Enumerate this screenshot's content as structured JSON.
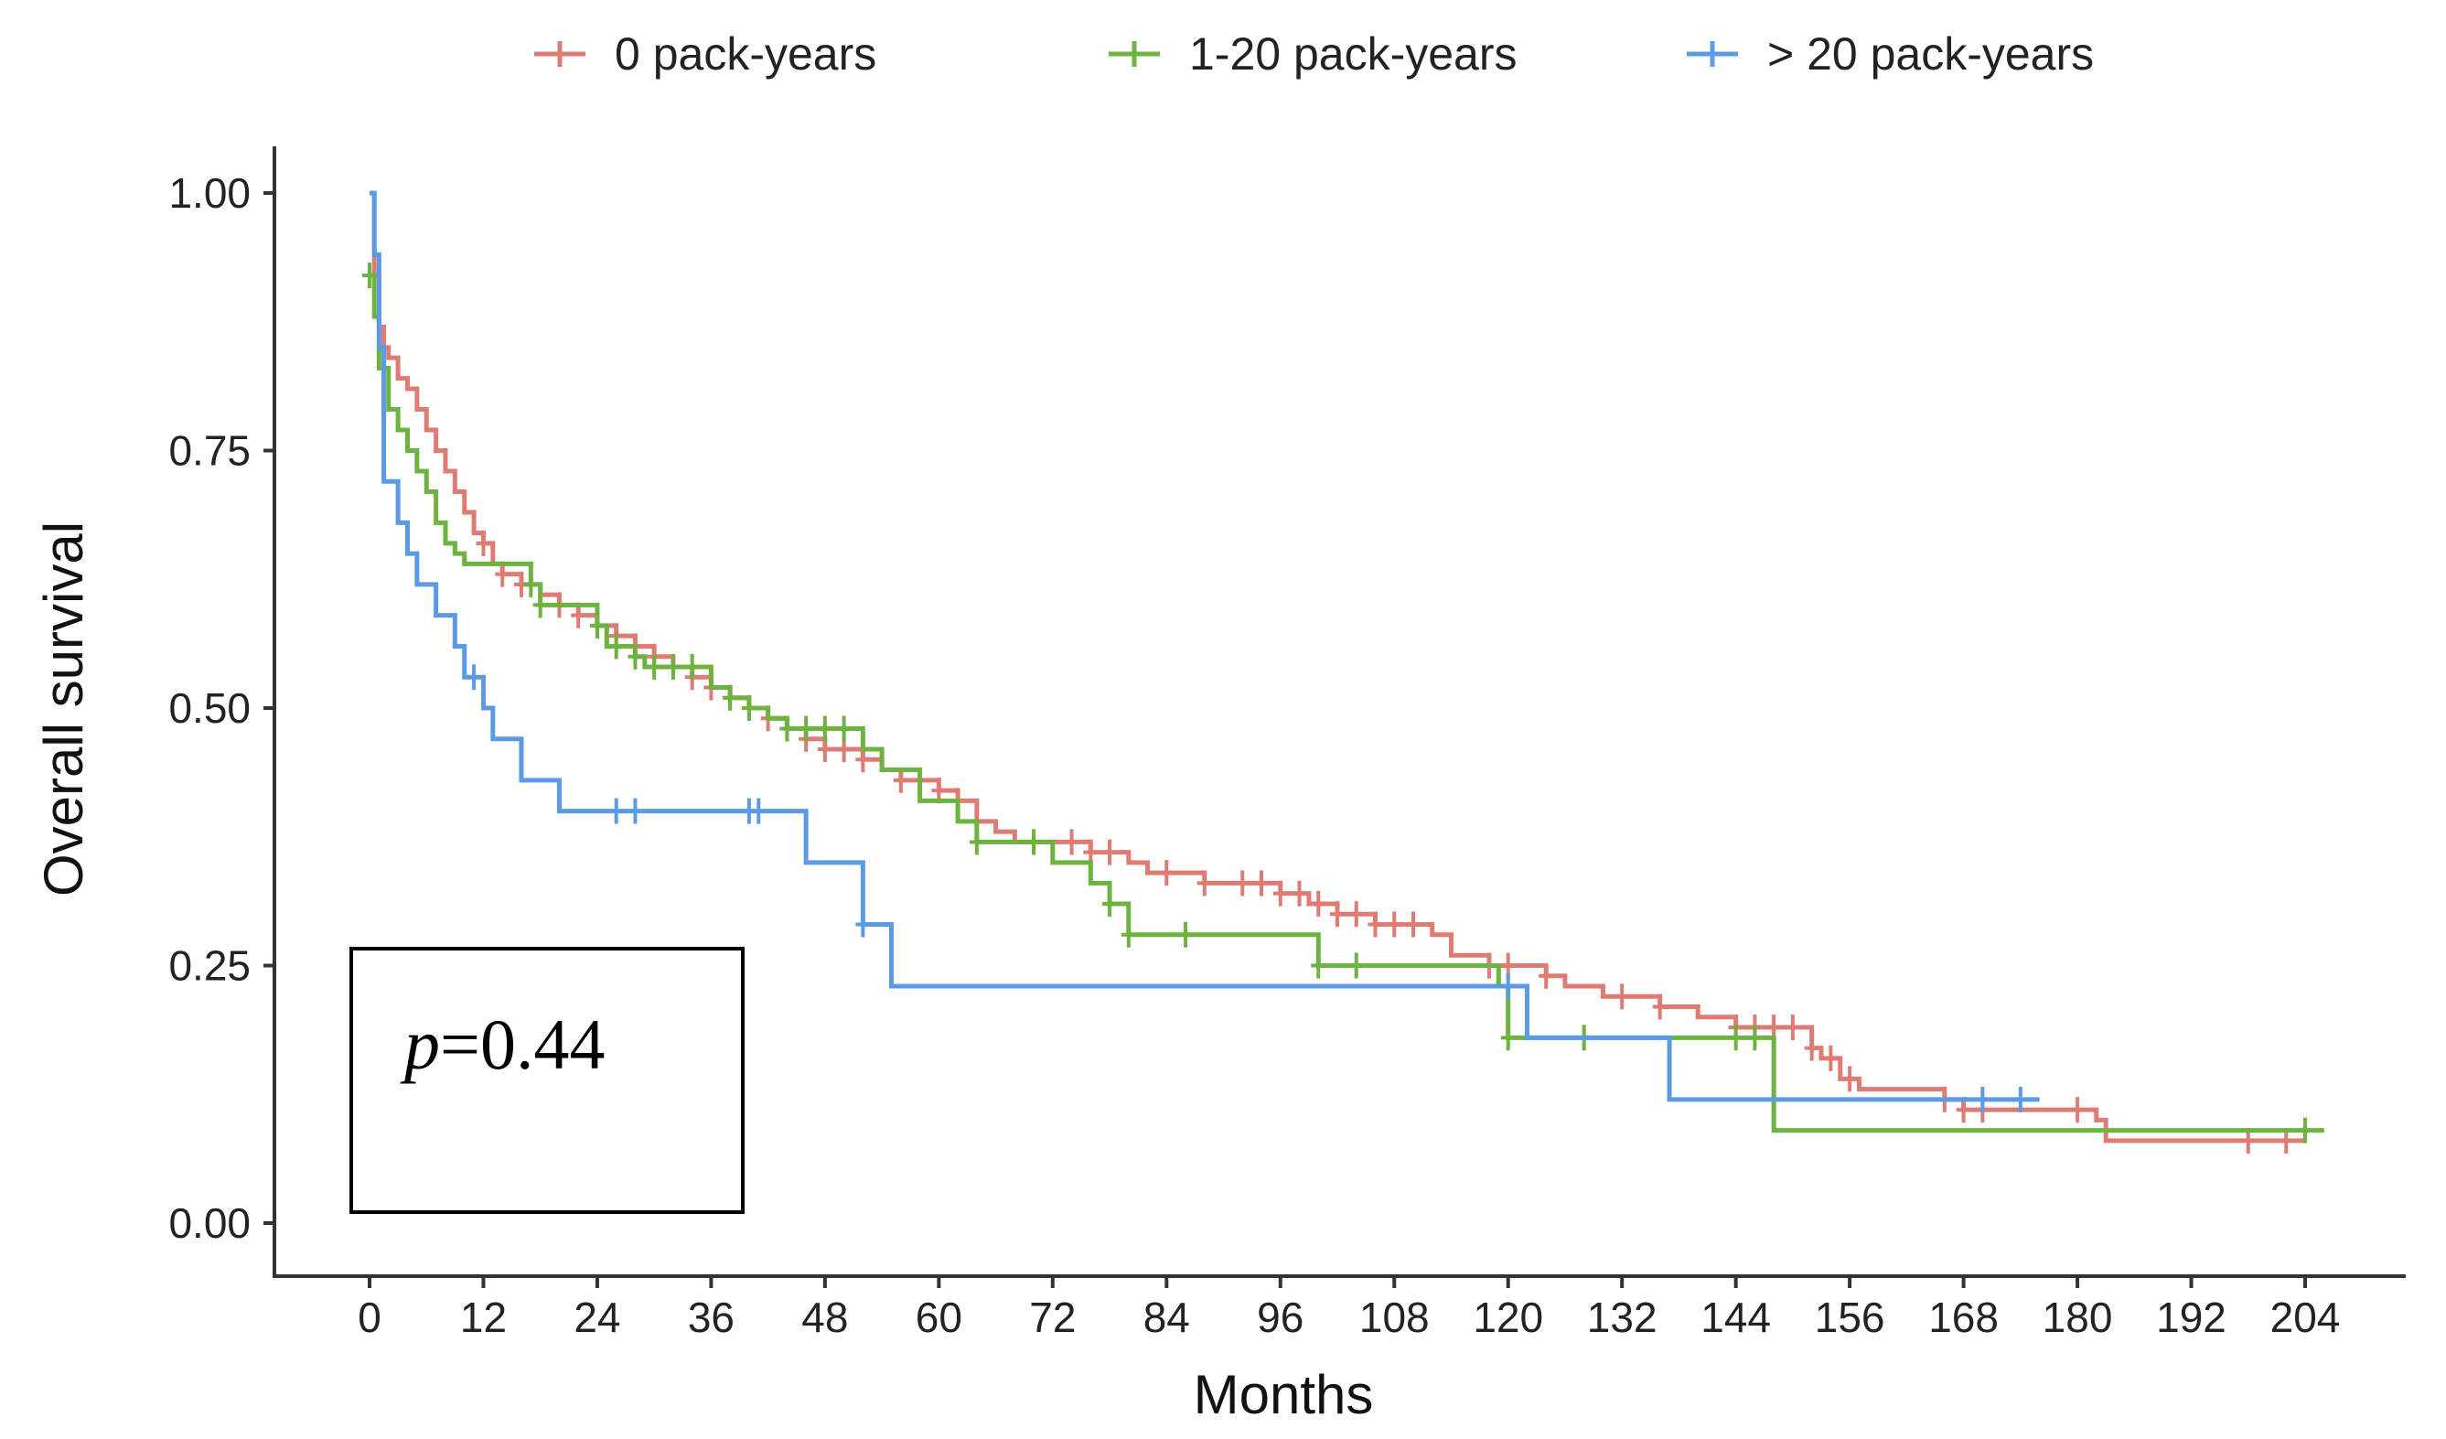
{
  "chart_data": {
    "type": "line",
    "xlabel": "Months",
    "ylabel": "Overall survival",
    "xlim": [
      0,
      204
    ],
    "ylim": [
      0,
      1
    ],
    "x_ticks": [
      "0",
      "12",
      "24",
      "36",
      "48",
      "60",
      "72",
      "84",
      "96",
      "108",
      "120",
      "132",
      "144",
      "156",
      "168",
      "180",
      "192",
      "204"
    ],
    "y_ticks": [
      "0.00",
      "0.25",
      "0.50",
      "0.75",
      "1.00"
    ],
    "legend_position": "top",
    "annotation": {
      "p_symbol": "p",
      "p_value": "=0.44"
    },
    "series": [
      {
        "name": "0 pack-years",
        "color": "#E07B73",
        "points": [
          [
            0,
            1.0
          ],
          [
            0.5,
            0.92
          ],
          [
            1,
            0.87
          ],
          [
            1.5,
            0.85
          ],
          [
            2,
            0.84
          ],
          [
            3,
            0.82
          ],
          [
            4,
            0.81
          ],
          [
            5,
            0.79
          ],
          [
            6,
            0.77
          ],
          [
            7,
            0.75
          ],
          [
            8,
            0.73
          ],
          [
            9,
            0.71
          ],
          [
            10,
            0.69
          ],
          [
            11,
            0.67
          ],
          [
            12,
            0.66
          ],
          [
            13,
            0.64
          ],
          [
            14,
            0.63
          ],
          [
            16,
            0.62
          ],
          [
            18,
            0.61
          ],
          [
            20,
            0.6
          ],
          [
            22,
            0.59
          ],
          [
            24,
            0.58
          ],
          [
            26,
            0.57
          ],
          [
            28,
            0.56
          ],
          [
            30,
            0.55
          ],
          [
            32,
            0.54
          ],
          [
            34,
            0.53
          ],
          [
            36,
            0.52
          ],
          [
            38,
            0.51
          ],
          [
            40,
            0.5
          ],
          [
            42,
            0.49
          ],
          [
            44,
            0.48
          ],
          [
            46,
            0.47
          ],
          [
            48,
            0.46
          ],
          [
            52,
            0.45
          ],
          [
            54,
            0.44
          ],
          [
            56,
            0.43
          ],
          [
            60,
            0.42
          ],
          [
            62,
            0.41
          ],
          [
            64,
            0.39
          ],
          [
            66,
            0.38
          ],
          [
            68,
            0.37
          ],
          [
            76,
            0.36
          ],
          [
            80,
            0.35
          ],
          [
            82,
            0.34
          ],
          [
            88,
            0.33
          ],
          [
            96,
            0.32
          ],
          [
            99,
            0.31
          ],
          [
            102,
            0.3
          ],
          [
            106,
            0.29
          ],
          [
            112,
            0.28
          ],
          [
            114,
            0.26
          ],
          [
            118,
            0.25
          ],
          [
            124,
            0.24
          ],
          [
            126,
            0.23
          ],
          [
            130,
            0.22
          ],
          [
            136,
            0.21
          ],
          [
            140,
            0.2
          ],
          [
            144,
            0.19
          ],
          [
            152,
            0.17
          ],
          [
            153,
            0.16
          ],
          [
            155,
            0.14
          ],
          [
            157,
            0.13
          ],
          [
            166,
            0.12
          ],
          [
            168,
            0.11
          ],
          [
            182,
            0.1
          ],
          [
            183,
            0.08
          ],
          [
            204,
            0.08
          ]
        ],
        "censor_x": [
          12,
          14,
          16,
          20,
          22,
          24,
          26,
          28,
          30,
          32,
          34,
          36,
          38,
          40,
          42,
          44,
          46,
          48,
          50,
          52,
          56,
          60,
          62,
          64,
          70,
          74,
          76,
          78,
          84,
          88,
          92,
          94,
          96,
          98,
          100,
          102,
          104,
          106,
          108,
          110,
          118,
          120,
          124,
          132,
          136,
          144,
          146,
          148,
          150,
          152,
          154,
          156,
          166,
          168,
          170,
          180,
          198,
          202
        ]
      },
      {
        "name": "1-20 pack-years",
        "color": "#6DB33F",
        "points": [
          [
            0,
            0.92
          ],
          [
            0.5,
            0.88
          ],
          [
            1,
            0.83
          ],
          [
            2,
            0.79
          ],
          [
            3,
            0.77
          ],
          [
            4,
            0.75
          ],
          [
            5,
            0.73
          ],
          [
            6,
            0.71
          ],
          [
            7,
            0.68
          ],
          [
            8,
            0.66
          ],
          [
            9,
            0.65
          ],
          [
            10,
            0.64
          ],
          [
            17,
            0.62
          ],
          [
            18,
            0.6
          ],
          [
            24,
            0.58
          ],
          [
            25,
            0.56
          ],
          [
            28,
            0.55
          ],
          [
            29,
            0.54
          ],
          [
            36,
            0.52
          ],
          [
            38,
            0.51
          ],
          [
            40,
            0.5
          ],
          [
            42,
            0.49
          ],
          [
            44,
            0.48
          ],
          [
            52,
            0.46
          ],
          [
            54,
            0.44
          ],
          [
            58,
            0.41
          ],
          [
            62,
            0.39
          ],
          [
            64,
            0.37
          ],
          [
            70,
            0.37
          ],
          [
            72,
            0.35
          ],
          [
            76,
            0.33
          ],
          [
            78,
            0.31
          ],
          [
            80,
            0.28
          ],
          [
            100,
            0.25
          ],
          [
            119,
            0.23
          ],
          [
            120,
            0.18
          ],
          [
            148,
            0.09
          ],
          [
            206,
            0.09
          ]
        ],
        "censor_x": [
          0,
          17,
          18,
          24,
          26,
          28,
          30,
          32,
          34,
          38,
          40,
          44,
          46,
          48,
          50,
          64,
          70,
          78,
          80,
          86,
          100,
          104,
          120,
          128,
          144,
          146,
          204
        ]
      },
      {
        "name": "> 20 pack-years",
        "color": "#5B9BE6",
        "points": [
          [
            0,
            1.0
          ],
          [
            0.5,
            0.94
          ],
          [
            1,
            0.85
          ],
          [
            1.5,
            0.72
          ],
          [
            3,
            0.68
          ],
          [
            4,
            0.65
          ],
          [
            5,
            0.62
          ],
          [
            7,
            0.59
          ],
          [
            9,
            0.56
          ],
          [
            10,
            0.53
          ],
          [
            12,
            0.5
          ],
          [
            13,
            0.47
          ],
          [
            16,
            0.43
          ],
          [
            20,
            0.4
          ],
          [
            46,
            0.35
          ],
          [
            52,
            0.29
          ],
          [
            55,
            0.23
          ],
          [
            122,
            0.18
          ],
          [
            137,
            0.12
          ],
          [
            176,
            0.12
          ]
        ],
        "censor_x": [
          11,
          26,
          28,
          40,
          41,
          52,
          120,
          170,
          174
        ]
      }
    ]
  }
}
